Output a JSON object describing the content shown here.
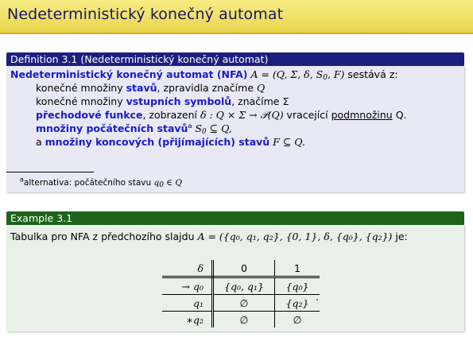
{
  "slide_title": "Nedeterministický konečný automat",
  "definition": {
    "header": "Definition 3.1 (Nedeterministický konečný automat)",
    "lead_bold": "Nedeterministický konečný automat (NFA)",
    "lead_math": "A = (Q, Σ, δ, S",
    "lead_math_sub": "0",
    "lead_math_end": ", F)",
    "lead_rest": " sestává z:",
    "l1_a": "konečné množiny ",
    "l1_b": "stavů",
    "l1_c": ", zpravidla značíme ",
    "l1_m": "Q",
    "l2_a": "konečné množiny ",
    "l2_b": "vstupních symbolů",
    "l2_c": ", značíme Σ",
    "l3_b": "přechodové funkce",
    "l3_c": ", zobrazení ",
    "l3_m": "δ : Q × Σ → 𝒫(Q)",
    "l3_d": " vracející ",
    "l3_u": "podmnožinu",
    "l3_e": " Q.",
    "l4_b": "množiny počátečních stavů",
    "l4_sup": "a",
    "l4_m": " S",
    "l4_sub": "0",
    "l4_m2": " ⊆ Q,",
    "l5_a": "a ",
    "l5_b": "množiny koncových (přijímajících) stavů",
    "l5_m": " F ⊆ Q.",
    "footnote_sup": "a",
    "footnote_text": "alternativa: počátečního stavu ",
    "footnote_m": "q",
    "footnote_sub": "0",
    "footnote_m2": " ∈ Q"
  },
  "example": {
    "header": "Example 3.1",
    "intro_text": "Tabulka pro NFA z předchozího slajdu ",
    "intro_math": "A = ({q₀, q₁, q₂}, {0, 1}, δ, {q₀}, {q₂})",
    "intro_end": " je:",
    "table": {
      "header": [
        "δ",
        "0",
        "1"
      ],
      "rows": [
        [
          "→ q₀",
          "{q₀, q₁}",
          "{q₀}"
        ],
        [
          "q₁",
          "∅",
          "{q₂}"
        ],
        [
          "∗q₂",
          "∅",
          "∅"
        ]
      ]
    },
    "period": "."
  }
}
